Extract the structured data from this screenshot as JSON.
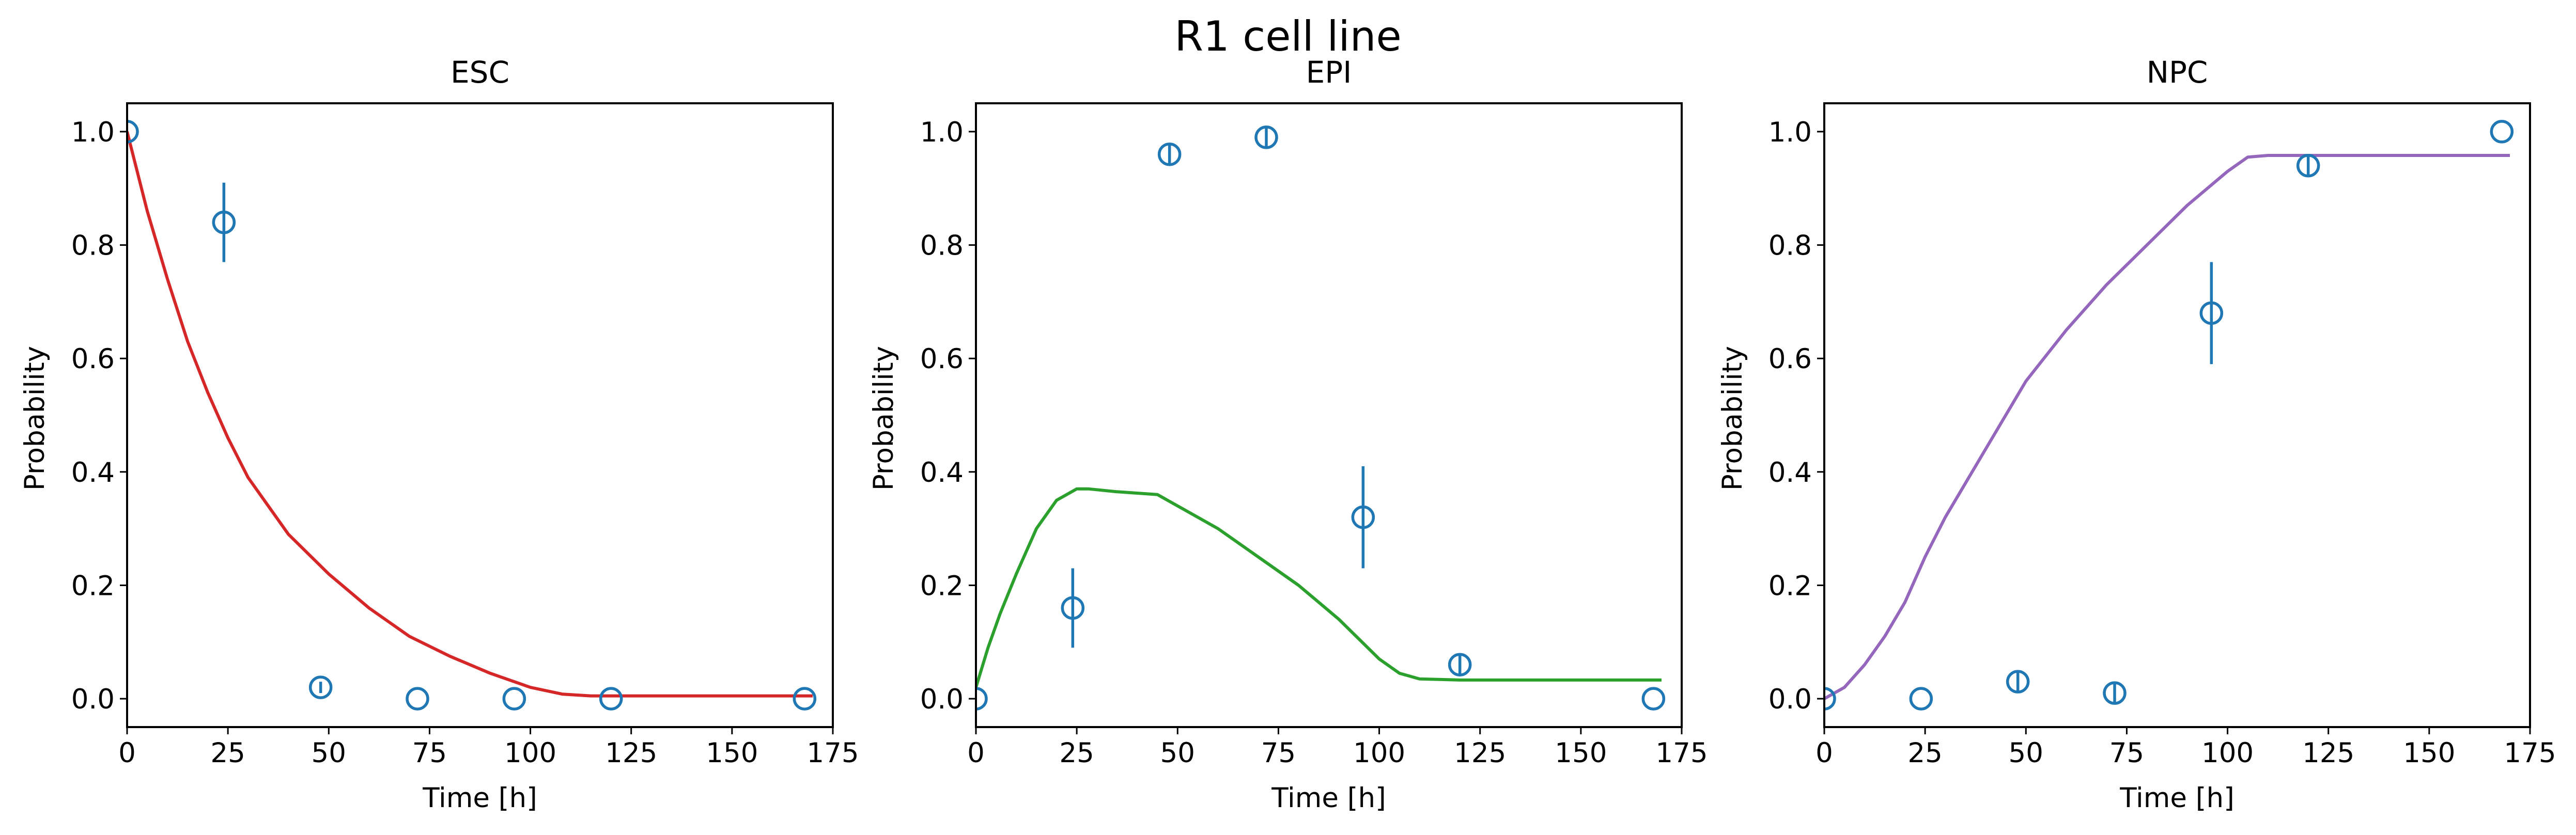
{
  "figure": {
    "suptitle": "R1 cell line",
    "marker_color": "#1f77b4"
  },
  "chart_data": [
    {
      "type": "scatter",
      "title": "ESC",
      "xlabel": "Time [h]",
      "ylabel": "Probability",
      "xlim": [
        0,
        175
      ],
      "ylim": [
        -0.05,
        1.05
      ],
      "x_ticks": [
        0,
        25,
        50,
        75,
        100,
        125,
        150,
        175
      ],
      "y_ticks": [
        0.0,
        0.2,
        0.4,
        0.6,
        0.8,
        1.0
      ],
      "x_tick_labels": [
        "0",
        "25",
        "50",
        "75",
        "100",
        "125",
        "150",
        "175"
      ],
      "y_tick_labels": [
        "0.0",
        "0.2",
        "0.4",
        "0.6",
        "0.8",
        "1.0"
      ],
      "grid": false,
      "line_color": "#d62728",
      "points": {
        "x": [
          0,
          24,
          48,
          72,
          96,
          120,
          168
        ],
        "y": [
          1.0,
          0.84,
          0.02,
          0.0,
          0.0,
          0.0,
          0.0
        ],
        "yerr": [
          0.0,
          0.07,
          0.01,
          0.0,
          0.0,
          0.0,
          0.0
        ]
      },
      "curve": {
        "x": [
          0,
          5,
          10,
          15,
          20,
          25,
          30,
          40,
          50,
          60,
          70,
          80,
          90,
          100,
          108,
          115,
          130,
          150,
          170
        ],
        "y": [
          1.0,
          0.86,
          0.74,
          0.63,
          0.54,
          0.46,
          0.39,
          0.29,
          0.22,
          0.16,
          0.11,
          0.075,
          0.045,
          0.02,
          0.008,
          0.005,
          0.005,
          0.005,
          0.005
        ]
      }
    },
    {
      "type": "scatter",
      "title": "EPI",
      "xlabel": "Time [h]",
      "ylabel": "Probability",
      "xlim": [
        0,
        175
      ],
      "ylim": [
        -0.05,
        1.05
      ],
      "x_ticks": [
        0,
        25,
        50,
        75,
        100,
        125,
        150,
        175
      ],
      "y_ticks": [
        0.0,
        0.2,
        0.4,
        0.6,
        0.8,
        1.0
      ],
      "x_tick_labels": [
        "0",
        "25",
        "50",
        "75",
        "100",
        "125",
        "150",
        "175"
      ],
      "y_tick_labels": [
        "0.0",
        "0.2",
        "0.4",
        "0.6",
        "0.8",
        "1.0"
      ],
      "grid": false,
      "line_color": "#2ca02c",
      "points": {
        "x": [
          0,
          24,
          48,
          72,
          96,
          120,
          168
        ],
        "y": [
          0.0,
          0.16,
          0.96,
          0.99,
          0.32,
          0.06,
          0.0
        ],
        "yerr": [
          0.0,
          0.07,
          0.02,
          0.02,
          0.09,
          0.02,
          0.0
        ]
      },
      "curve": {
        "x": [
          0,
          3,
          6,
          10,
          15,
          20,
          25,
          28,
          35,
          45,
          50,
          60,
          70,
          80,
          90,
          100,
          105,
          110,
          120,
          140,
          170
        ],
        "y": [
          0.02,
          0.09,
          0.15,
          0.22,
          0.3,
          0.35,
          0.37,
          0.37,
          0.365,
          0.36,
          0.34,
          0.3,
          0.25,
          0.2,
          0.14,
          0.07,
          0.045,
          0.035,
          0.033,
          0.033,
          0.033
        ]
      }
    },
    {
      "type": "scatter",
      "title": "NPC",
      "xlabel": "Time [h]",
      "ylabel": "Probability",
      "xlim": [
        0,
        175
      ],
      "ylim": [
        -0.05,
        1.05
      ],
      "x_ticks": [
        0,
        25,
        50,
        75,
        100,
        125,
        150,
        175
      ],
      "y_ticks": [
        0.0,
        0.2,
        0.4,
        0.6,
        0.8,
        1.0
      ],
      "x_tick_labels": [
        "0",
        "25",
        "50",
        "75",
        "100",
        "125",
        "150",
        "175"
      ],
      "y_tick_labels": [
        "0.0",
        "0.2",
        "0.4",
        "0.6",
        "0.8",
        "1.0"
      ],
      "grid": false,
      "line_color": "#9467bd",
      "points": {
        "x": [
          0,
          24,
          48,
          72,
          96,
          120,
          168
        ],
        "y": [
          0.0,
          0.0,
          0.03,
          0.01,
          0.68,
          0.94,
          1.0
        ],
        "yerr": [
          0.0,
          0.0,
          0.02,
          0.02,
          0.09,
          0.02,
          0.0
        ]
      },
      "curve": {
        "x": [
          0,
          5,
          10,
          15,
          20,
          25,
          30,
          35,
          40,
          50,
          60,
          70,
          80,
          90,
          100,
          105,
          110,
          115,
          120,
          140,
          170
        ],
        "y": [
          0.0,
          0.02,
          0.06,
          0.11,
          0.17,
          0.25,
          0.32,
          0.38,
          0.44,
          0.56,
          0.65,
          0.73,
          0.8,
          0.87,
          0.93,
          0.955,
          0.958,
          0.958,
          0.958,
          0.958,
          0.958
        ]
      }
    }
  ]
}
